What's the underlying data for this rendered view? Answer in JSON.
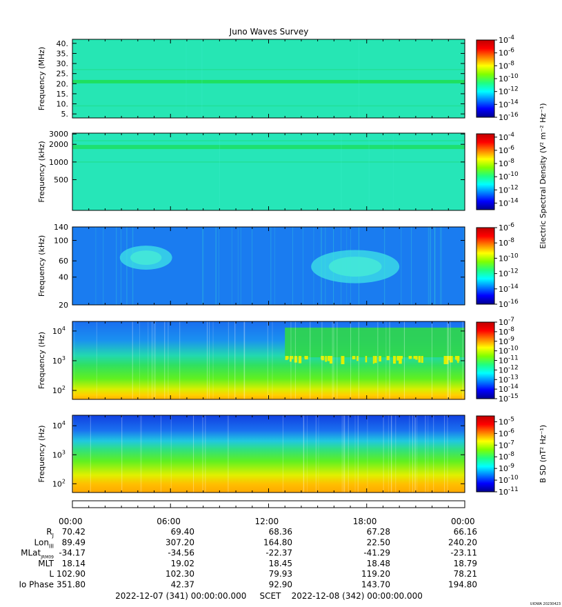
{
  "chart_data": {
    "type": "heatmap",
    "title": "Juno Waves Survey",
    "panels": [
      {
        "id": "p1",
        "ylabel": "Frequency (MHz)",
        "y_scale": "linear",
        "ylim": [
          3,
          42
        ],
        "yticks": [
          {
            "v": 5,
            "label": "5."
          },
          {
            "v": 10,
            "label": "10."
          },
          {
            "v": 15,
            "label": "15."
          },
          {
            "v": 20,
            "label": "20."
          },
          {
            "v": 25,
            "label": "25."
          },
          {
            "v": 30,
            "label": "30."
          },
          {
            "v": 35,
            "label": "35."
          },
          {
            "v": 40,
            "label": "40."
          }
        ],
        "bands": [
          {
            "v": 21.0,
            "color": "#1ee060",
            "width": 2.5
          },
          {
            "v": 9.0,
            "color": "#22e09a",
            "width": 0.8
          },
          {
            "v": 27.0,
            "color": "#22e09a",
            "width": 0.8
          }
        ],
        "background": "#26e6b4",
        "colorbar": {
          "min_exp": -16,
          "max_exp": -4,
          "labels": [
            -4,
            -6,
            -8,
            -10,
            -12,
            -14,
            -16
          ]
        }
      },
      {
        "id": "p2",
        "ylabel": "Frequency (kHz)",
        "y_scale": "log",
        "ylim": [
          150,
          3100
        ],
        "yticks": [
          {
            "v": 500,
            "label": "500"
          },
          {
            "v": 1000,
            "label": "1000"
          },
          {
            "v": 2000,
            "label": "2000"
          },
          {
            "v": 3000,
            "label": "3000"
          }
        ],
        "bands": [
          {
            "v": 1800,
            "color": "#1ee070",
            "width": 3
          },
          {
            "v": 1000,
            "color": "#22e09a",
            "width": 0.8
          },
          {
            "v": 2300,
            "color": "#22e09a",
            "width": 0.8
          }
        ],
        "background": "#26e6b8",
        "colorbar": {
          "min_exp": -15,
          "max_exp": -3.5,
          "labels": [
            -4,
            -6,
            -8,
            -10,
            -12,
            -14
          ]
        }
      },
      {
        "id": "p3",
        "ylabel": "Frequency (kHz)",
        "y_scale": "log",
        "ylim": [
          20,
          140
        ],
        "yticks": [
          {
            "v": 20,
            "label": "20"
          },
          {
            "v": 40,
            "label": "40"
          },
          {
            "v": 60,
            "label": "60"
          },
          {
            "v": 100,
            "label": "100"
          },
          {
            "v": 140,
            "label": "140"
          }
        ],
        "background": "#1a7cf0",
        "emission_regions": [
          {
            "hour": 4.5,
            "freq": 65,
            "rx": 1.6,
            "ry_decades": 0.13
          },
          {
            "hour": 17.3,
            "freq": 52,
            "rx": 2.7,
            "ry_decades": 0.18
          }
        ],
        "colorbar": {
          "min_exp": -16,
          "max_exp": -6,
          "labels": [
            -6,
            -8,
            -10,
            -12,
            -14,
            -16
          ]
        }
      },
      {
        "id": "p4",
        "ylabel": "Frequency (Hz)",
        "y_scale": "log",
        "ylim": [
          50,
          21000
        ],
        "yticks": [
          {
            "v": 100,
            "label": "10",
            "sup": "2"
          },
          {
            "v": 1000,
            "label": "10",
            "sup": "3"
          },
          {
            "v": 10000,
            "label": "10",
            "sup": "4"
          }
        ],
        "gradient": [
          {
            "v": 21000,
            "color": "#1a6ef0"
          },
          {
            "v": 5000,
            "color": "#1a90f0"
          },
          {
            "v": 1500,
            "color": "#22d8b0"
          },
          {
            "v": 700,
            "color": "#30e060"
          },
          {
            "v": 250,
            "color": "#60f020"
          },
          {
            "v": 110,
            "color": "#d8f000"
          },
          {
            "v": 70,
            "color": "#ffd000"
          },
          {
            "v": 50,
            "color": "#ffb000"
          }
        ],
        "emission_regions": [
          {
            "hour_start": 13,
            "hour_end": 24,
            "freq_low": 1300,
            "freq_high": 13000,
            "color": "#30d848"
          }
        ],
        "colorbar": {
          "min_exp": -15,
          "max_exp": -7,
          "labels": [
            -7,
            -8,
            -9,
            -10,
            -11,
            -12,
            -13,
            -14,
            -15
          ]
        },
        "cb_title": "Electric Spectral Density (V² m⁻² Hz⁻¹)"
      },
      {
        "id": "p5",
        "ylabel": "Frequency (Hz)",
        "y_scale": "log",
        "ylim": [
          50,
          23000
        ],
        "yticks": [
          {
            "v": 100,
            "label": "10",
            "sup": "2"
          },
          {
            "v": 1000,
            "label": "10",
            "sup": "3"
          },
          {
            "v": 10000,
            "label": "10",
            "sup": "4"
          }
        ],
        "gradient": [
          {
            "v": 23000,
            "color": "#1040e0"
          },
          {
            "v": 7000,
            "color": "#1a70f0"
          },
          {
            "v": 3000,
            "color": "#20c8e0"
          },
          {
            "v": 1500,
            "color": "#30e080"
          },
          {
            "v": 600,
            "color": "#60f020"
          },
          {
            "v": 200,
            "color": "#e0f000"
          },
          {
            "v": 100,
            "color": "#ffc000"
          },
          {
            "v": 50,
            "color": "#ffa800"
          }
        ],
        "colorbar": {
          "min_exp": -11,
          "max_exp": -4.5,
          "labels": [
            -5,
            -6,
            -7,
            -8,
            -9,
            -10,
            -11
          ]
        },
        "cb_title": "B SD (nT² Hz⁻¹)"
      }
    ],
    "x_axis": {
      "range_hours": [
        0,
        24
      ],
      "tick_hours": [
        0,
        6,
        12,
        18,
        24
      ],
      "labels": [
        "00:00",
        "06:00",
        "12:00",
        "18:00",
        "00:00"
      ]
    },
    "ephemeris": {
      "rows": [
        {
          "name": "R",
          "sub": "J",
          "values": [
            "70.42",
            "69.40",
            "68.36",
            "67.28",
            "66.16"
          ]
        },
        {
          "name": "Lon",
          "sub": "III",
          "values": [
            "89.49",
            "307.20",
            "164.80",
            "22.50",
            "240.20"
          ]
        },
        {
          "name": "MLat",
          "sub": "JRM09",
          "values": [
            "-34.17",
            "-34.56",
            "-22.37",
            "-41.29",
            "-23.11"
          ]
        },
        {
          "name": "MLT",
          "sub": "",
          "values": [
            "18.14",
            "19.02",
            "18.45",
            "18.48",
            "18.79"
          ]
        },
        {
          "name": "L",
          "sub": "",
          "values": [
            "102.90",
            "102.30",
            "79.93",
            "119.20",
            "78.21"
          ]
        },
        {
          "name": "Io Phase",
          "sub": "",
          "values": [
            "351.80",
            "42.37",
            "92.90",
            "143.70",
            "194.80"
          ]
        }
      ]
    },
    "footer": "2022-12-07 (341) 00:00:00.000     SCET    2022-12-08 (342) 00:00:00.000",
    "credit": "UIOWA 20230423"
  }
}
